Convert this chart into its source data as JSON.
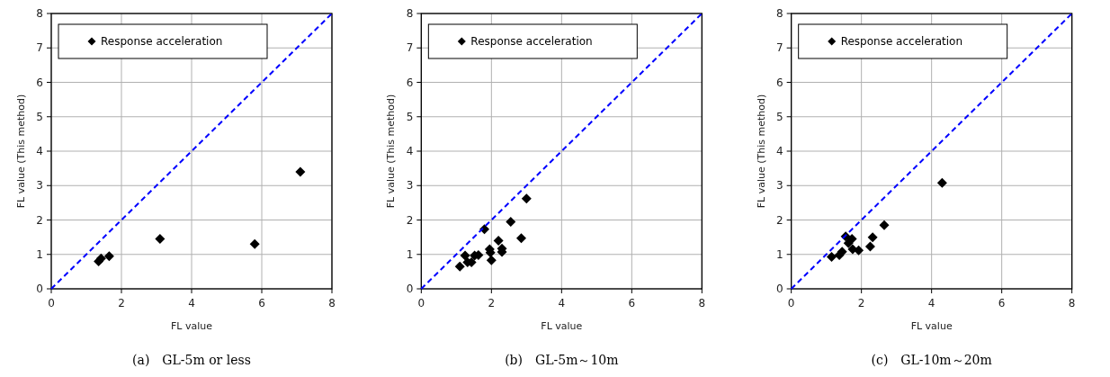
{
  "chart_data": [
    {
      "type": "scatter",
      "xlabel": "FL value",
      "ylabel": "FL value (This method)",
      "annotations": [
        "(a)　GL-5m or less"
      ],
      "xlim": [
        0,
        8
      ],
      "ylim": [
        0,
        8
      ],
      "xticks": [
        0,
        2,
        4,
        6,
        8
      ],
      "yticks": [
        0,
        1,
        2,
        3,
        4,
        5,
        6,
        7,
        8
      ],
      "grid": true,
      "legend": "top left",
      "marker": "diamond",
      "series": [
        {
          "name": "Response acceleration",
          "color": "#000000",
          "x": [
            1.35,
            1.42,
            1.65,
            3.1,
            5.8,
            7.1
          ],
          "values": [
            0.8,
            0.88,
            0.95,
            1.45,
            1.3,
            3.4
          ]
        },
        {
          "type": "line",
          "color": "#0000ff",
          "line_style": "dashed",
          "marker": "none",
          "x": [
            0,
            8
          ],
          "values": [
            0,
            8
          ]
        }
      ]
    },
    {
      "type": "scatter",
      "xlabel": "FL value",
      "ylabel": "FL value (This method)",
      "annotations": [
        "(b)　GL-5m～10m"
      ],
      "xlim": [
        0,
        8
      ],
      "ylim": [
        0,
        8
      ],
      "xticks": [
        0,
        2,
        4,
        6,
        8
      ],
      "yticks": [
        0,
        1,
        2,
        3,
        4,
        5,
        6,
        7,
        8
      ],
      "grid": true,
      "legend": "top left",
      "marker": "diamond",
      "series": [
        {
          "name": "Response acceleration",
          "color": "#000000",
          "x": [
            1.1,
            1.25,
            1.32,
            1.43,
            1.52,
            1.63,
            1.8,
            1.95,
            1.97,
            2.0,
            2.2,
            2.3,
            2.3,
            2.55,
            2.85,
            3.0
          ],
          "values": [
            0.65,
            0.97,
            0.77,
            0.77,
            0.97,
            0.98,
            1.73,
            1.15,
            1.05,
            0.83,
            1.4,
            1.17,
            1.07,
            1.95,
            1.47,
            2.62
          ]
        },
        {
          "type": "line",
          "color": "#0000ff",
          "line_style": "dashed",
          "marker": "none",
          "x": [
            0,
            8
          ],
          "values": [
            0,
            8
          ]
        }
      ]
    },
    {
      "type": "scatter",
      "xlabel": "FL value",
      "ylabel": "FL value (This method)",
      "annotations": [
        "(c)　GL-10m～20m"
      ],
      "xlim": [
        0,
        8
      ],
      "ylim": [
        0,
        8
      ],
      "xticks": [
        0,
        2,
        4,
        6,
        8
      ],
      "yticks": [
        0,
        1,
        2,
        3,
        4,
        5,
        6,
        7,
        8
      ],
      "grid": true,
      "legend": "top left",
      "marker": "diamond",
      "series": [
        {
          "name": "Response acceleration",
          "color": "#000000",
          "x": [
            1.15,
            1.37,
            1.45,
            1.55,
            1.63,
            1.73,
            1.75,
            1.92,
            2.25,
            2.32,
            2.65,
            4.3
          ],
          "values": [
            0.93,
            0.98,
            1.08,
            1.52,
            1.33,
            1.45,
            1.15,
            1.12,
            1.23,
            1.5,
            1.85,
            3.08
          ]
        },
        {
          "type": "line",
          "color": "#0000ff",
          "line_style": "dashed",
          "marker": "none",
          "x": [
            0,
            8
          ],
          "values": [
            0,
            8
          ]
        }
      ]
    }
  ]
}
